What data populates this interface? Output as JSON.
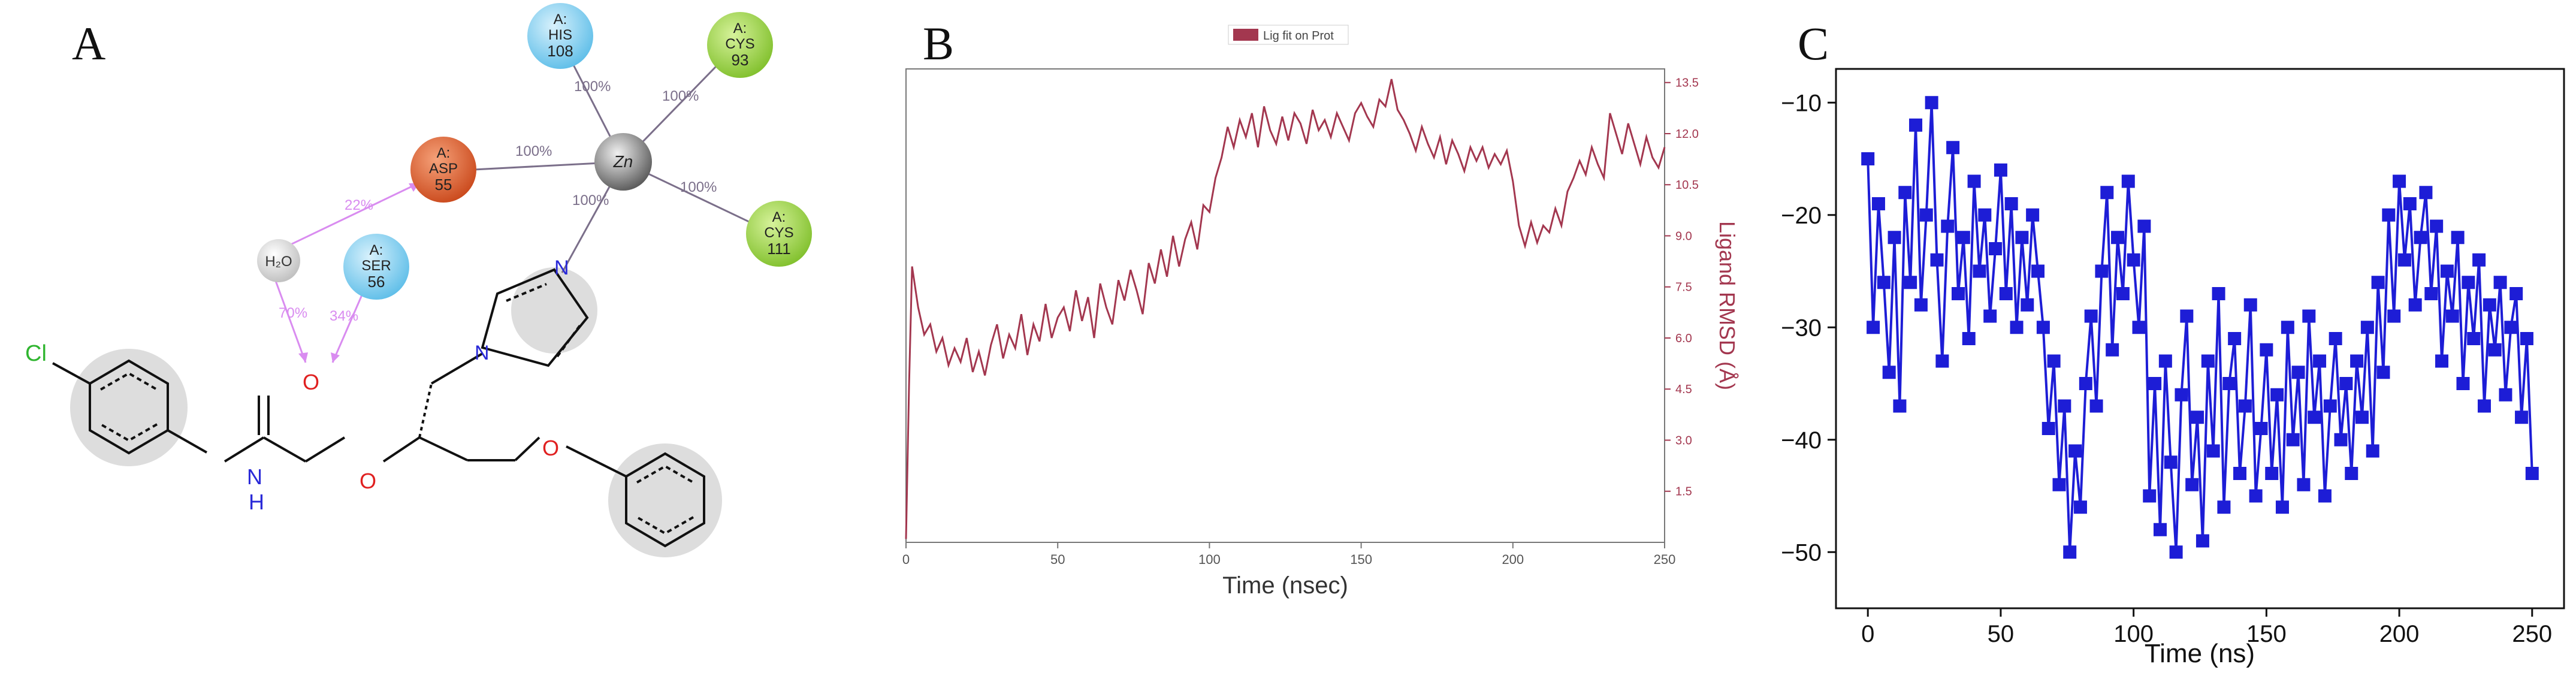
{
  "figure": {
    "panels": [
      {
        "letter": "A"
      },
      {
        "letter": "B"
      },
      {
        "letter": "C"
      }
    ]
  },
  "molecule": {
    "residues": [
      {
        "chain": "A:",
        "name": "HIS",
        "number": "108",
        "color": "#87d3f2"
      },
      {
        "chain": "A:",
        "name": "CYS",
        "number": "93",
        "color": "#9fd64a"
      },
      {
        "chain": "A:",
        "name": "ASP",
        "number": "55",
        "color": "#e8632b"
      },
      {
        "chain": "A:",
        "name": "CYS",
        "number": "111",
        "color": "#9fd64a"
      },
      {
        "chain": "A:",
        "name": "SER",
        "number": "56",
        "color": "#87d3f2"
      }
    ],
    "metal": {
      "label": "Zn",
      "color": "#8c8c8c"
    },
    "water": {
      "label": "H₂O",
      "color": "#e0e0e0"
    },
    "contact_labels": [
      "100%",
      "100%",
      "100%",
      "100%",
      "100%"
    ],
    "hbond_labels": [
      "22%",
      "70%",
      "34%"
    ],
    "atom_labels": {
      "cl": "Cl",
      "o_carbonyl": "O",
      "n_amide": "N",
      "h_amide": "H",
      "o_ester": "O",
      "o_ether": "O",
      "n_imidazole1": "N",
      "n_imidazole2": "N"
    },
    "colors": {
      "contact": "#7b6f8a",
      "hbond": "#d98cf0",
      "cl": "#2fb52f",
      "o": "#e02020",
      "n": "#2a2ad8",
      "bond": "#111111",
      "halo": "#c8c8c8"
    }
  },
  "chart_data": [
    {
      "type": "line",
      "title": "",
      "legend": [
        "Lig fit on Prot"
      ],
      "legend_position": "top-center",
      "xlabel": "Time (nsec)",
      "ylabel": "Ligand RMSD (Å)",
      "y_axis_side": "right",
      "xlim": [
        0,
        250
      ],
      "ylim": [
        0,
        13.9
      ],
      "xticks": [
        "0",
        "50",
        "100",
        "150",
        "200",
        "250"
      ],
      "yticks": [
        "1.5",
        "3.0",
        "4.5",
        "6.0",
        "7.5",
        "9.0",
        "10.5",
        "12.0",
        "13.5"
      ],
      "color": "#a3374f",
      "grid": false,
      "x": [
        0,
        1,
        2,
        4,
        6,
        8,
        10,
        12,
        14,
        16,
        18,
        20,
        22,
        24,
        26,
        28,
        30,
        32,
        34,
        36,
        38,
        40,
        42,
        44,
        46,
        48,
        50,
        52,
        54,
        56,
        58,
        60,
        62,
        64,
        66,
        68,
        70,
        72,
        74,
        76,
        78,
        80,
        82,
        84,
        86,
        88,
        90,
        92,
        94,
        96,
        98,
        100,
        102,
        104,
        106,
        108,
        110,
        112,
        114,
        116,
        118,
        120,
        122,
        124,
        126,
        128,
        130,
        132,
        134,
        136,
        138,
        140,
        142,
        144,
        146,
        148,
        150,
        152,
        154,
        156,
        158,
        160,
        162,
        164,
        166,
        168,
        170,
        172,
        174,
        176,
        178,
        180,
        182,
        184,
        186,
        188,
        190,
        192,
        194,
        196,
        198,
        200,
        202,
        204,
        206,
        208,
        210,
        212,
        214,
        216,
        218,
        220,
        222,
        224,
        226,
        228,
        230,
        232,
        234,
        236,
        238,
        240,
        242,
        244,
        246,
        248,
        250
      ],
      "y": [
        0.1,
        4.6,
        8.1,
        6.9,
        6.1,
        6.4,
        5.6,
        6.0,
        5.2,
        5.7,
        5.3,
        6.0,
        5.0,
        5.6,
        4.9,
        5.8,
        6.4,
        5.4,
        6.1,
        5.7,
        6.7,
        5.5,
        6.4,
        5.9,
        7.0,
        6.0,
        6.6,
        6.9,
        6.2,
        7.4,
        6.5,
        7.2,
        6.0,
        7.6,
        6.9,
        6.4,
        7.7,
        7.1,
        8.0,
        7.4,
        6.7,
        8.2,
        7.6,
        8.6,
        7.8,
        9.0,
        8.1,
        8.9,
        9.4,
        8.6,
        9.9,
        9.7,
        10.7,
        11.3,
        12.2,
        11.6,
        12.4,
        11.9,
        12.6,
        11.6,
        12.8,
        12.1,
        11.7,
        12.5,
        11.8,
        12.6,
        12.3,
        11.7,
        12.7,
        12.1,
        12.4,
        11.9,
        12.6,
        12.2,
        11.8,
        12.6,
        12.9,
        12.5,
        12.2,
        13.0,
        12.8,
        13.6,
        12.7,
        12.4,
        12.0,
        11.5,
        12.2,
        11.7,
        11.3,
        11.9,
        11.1,
        11.8,
        11.4,
        10.9,
        11.6,
        11.2,
        11.6,
        11.0,
        11.4,
        11.1,
        11.5,
        10.6,
        9.3,
        8.7,
        9.4,
        8.8,
        9.3,
        9.1,
        9.8,
        9.3,
        10.3,
        10.7,
        11.2,
        10.8,
        11.6,
        11.1,
        10.7,
        12.6,
        12.0,
        11.4,
        12.3,
        11.7,
        11.1,
        11.9,
        11.3,
        11.0,
        11.6
      ]
    },
    {
      "type": "line",
      "title": "",
      "xlabel": "Time (ns)",
      "ylabel": "",
      "xlim": [
        -12,
        262
      ],
      "ylim": [
        -55,
        -7
      ],
      "xticks": [
        "0",
        "50",
        "100",
        "150",
        "200",
        "250"
      ],
      "yticks": [
        "−10",
        "−20",
        "−30",
        "−40",
        "−50"
      ],
      "color": "#1d1dd6",
      "marker": "square",
      "grid": false,
      "x": [
        0,
        2,
        4,
        6,
        8,
        10,
        12,
        14,
        16,
        18,
        20,
        22,
        24,
        26,
        28,
        30,
        32,
        34,
        36,
        38,
        40,
        42,
        44,
        46,
        48,
        50,
        52,
        54,
        56,
        58,
        60,
        62,
        64,
        66,
        68,
        70,
        72,
        74,
        76,
        78,
        80,
        82,
        84,
        86,
        88,
        90,
        92,
        94,
        96,
        98,
        100,
        102,
        104,
        106,
        108,
        110,
        112,
        114,
        116,
        118,
        120,
        122,
        124,
        126,
        128,
        130,
        132,
        134,
        136,
        138,
        140,
        142,
        144,
        146,
        148,
        150,
        152,
        154,
        156,
        158,
        160,
        162,
        164,
        166,
        168,
        170,
        172,
        174,
        176,
        178,
        180,
        182,
        184,
        186,
        188,
        190,
        192,
        194,
        196,
        198,
        200,
        202,
        204,
        206,
        208,
        210,
        212,
        214,
        216,
        218,
        220,
        222,
        224,
        226,
        228,
        230,
        232,
        234,
        236,
        238,
        240,
        242,
        244,
        246,
        248,
        250
      ],
      "y": [
        -15,
        -30,
        -19,
        -26,
        -34,
        -22,
        -37,
        -18,
        -26,
        -12,
        -28,
        -20,
        -10,
        -24,
        -33,
        -21,
        -14,
        -27,
        -22,
        -31,
        -17,
        -25,
        -20,
        -29,
        -23,
        -16,
        -27,
        -19,
        -30,
        -22,
        -28,
        -20,
        -25,
        -30,
        -39,
        -33,
        -44,
        -37,
        -50,
        -41,
        -46,
        -35,
        -29,
        -37,
        -25,
        -18,
        -32,
        -22,
        -27,
        -17,
        -24,
        -30,
        -21,
        -45,
        -35,
        -48,
        -33,
        -42,
        -50,
        -36,
        -29,
        -44,
        -38,
        -49,
        -33,
        -41,
        -27,
        -46,
        -35,
        -31,
        -43,
        -37,
        -28,
        -45,
        -39,
        -32,
        -43,
        -36,
        -46,
        -30,
        -40,
        -34,
        -44,
        -29,
        -38,
        -33,
        -45,
        -37,
        -31,
        -40,
        -35,
        -43,
        -33,
        -38,
        -30,
        -41,
        -26,
        -34,
        -20,
        -29,
        -17,
        -24,
        -19,
        -28,
        -22,
        -18,
        -27,
        -21,
        -33,
        -25,
        -29,
        -22,
        -35,
        -26,
        -31,
        -24,
        -37,
        -28,
        -32,
        -26,
        -36,
        -30,
        -27,
        -38,
        -31,
        -43
      ]
    }
  ]
}
